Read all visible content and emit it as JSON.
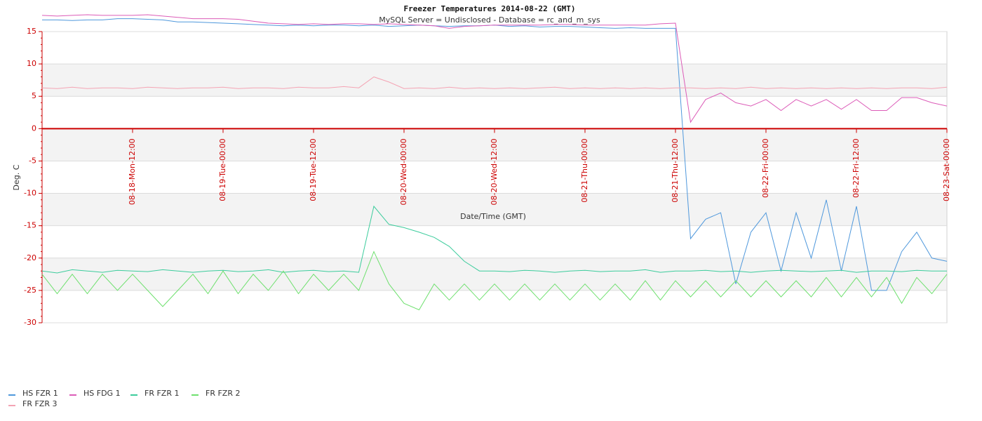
{
  "chart_data": {
    "type": "line",
    "title": "Freezer Temperatures 2014-08-22 (GMT)",
    "subtitle": "MySQL Server = Undisclosed - Database = rc_and_m_sys",
    "x_label": "Date/Time (GMT)",
    "y_label": "Deg. C",
    "x": [
      "08-18 00:00",
      "08-18 02:00",
      "08-18 04:00",
      "08-18 06:00",
      "08-18 08:00",
      "08-18 10:00",
      "08-18 12:00",
      "08-18 14:00",
      "08-18 16:00",
      "08-18 18:00",
      "08-18 20:00",
      "08-18 22:00",
      "08-19 00:00",
      "08-19 02:00",
      "08-19 04:00",
      "08-19 06:00",
      "08-19 08:00",
      "08-19 10:00",
      "08-19 12:00",
      "08-19 14:00",
      "08-19 16:00",
      "08-19 18:00",
      "08-19 20:00",
      "08-19 22:00",
      "08-20 00:00",
      "08-20 02:00",
      "08-20 04:00",
      "08-20 06:00",
      "08-20 08:00",
      "08-20 10:00",
      "08-20 12:00",
      "08-20 14:00",
      "08-20 16:00",
      "08-20 18:00",
      "08-20 20:00",
      "08-20 22:00",
      "08-21 00:00",
      "08-21 02:00",
      "08-21 04:00",
      "08-21 06:00",
      "08-21 08:00",
      "08-21 10:00",
      "08-21 12:00",
      "08-21 14:00",
      "08-21 16:00",
      "08-21 18:00",
      "08-21 20:00",
      "08-21 22:00",
      "08-22 00:00",
      "08-22 02:00",
      "08-22 04:00",
      "08-22 06:00",
      "08-22 08:00",
      "08-22 10:00",
      "08-22 12:00",
      "08-22 14:00",
      "08-22 16:00",
      "08-22 18:00",
      "08-22 20:00",
      "08-22 22:00",
      "08-23 00:00"
    ],
    "series": [
      {
        "name": "HS FZR 1",
        "color": "#4f98dc",
        "values": [
          16.8,
          16.8,
          16.7,
          16.8,
          16.8,
          17,
          17,
          16.9,
          16.8,
          16.5,
          16.5,
          16.4,
          16.3,
          16.2,
          16.1,
          16,
          15.9,
          16,
          15.9,
          16,
          16,
          15.9,
          16,
          15.8,
          15.9,
          16,
          15.9,
          15.8,
          15.9,
          15.9,
          16,
          15.8,
          15.9,
          15.7,
          15.8,
          15.8,
          15.7,
          15.6,
          15.5,
          15.6,
          15.5,
          15.5,
          15.5,
          -17,
          -14,
          -13,
          -24,
          -16,
          -13,
          -22,
          -13,
          -20,
          -11,
          -22,
          -12,
          -25,
          -25,
          -19,
          -16,
          -20,
          -20.5
        ]
      },
      {
        "name": "HS FDG 1",
        "color": "#dc5cb8",
        "values": [
          17.5,
          17.4,
          17.5,
          17.6,
          17.5,
          17.5,
          17.5,
          17.6,
          17.4,
          17.2,
          17,
          17,
          17,
          16.9,
          16.6,
          16.3,
          16.2,
          16.1,
          16.2,
          16.1,
          16.2,
          16.2,
          16.1,
          16.2,
          16.1,
          16,
          15.9,
          15.5,
          15.8,
          15.9,
          16,
          16,
          16,
          16,
          16.1,
          16.1,
          16,
          16,
          16,
          16,
          16,
          16.2,
          16.3,
          1,
          4.5,
          5.5,
          4,
          3.5,
          4.5,
          2.8,
          4.5,
          3.5,
          4.5,
          3,
          4.5,
          2.8,
          2.8,
          4.8,
          4.8,
          4,
          3.5
        ]
      },
      {
        "name": "FR FZR 1",
        "color": "#3ccc9c",
        "values": [
          -22,
          -22.3,
          -21.8,
          -22,
          -22.2,
          -21.9,
          -22,
          -22.1,
          -21.8,
          -22,
          -22.2,
          -22,
          -21.9,
          -22.1,
          -22,
          -21.8,
          -22.2,
          -22,
          -21.9,
          -22.1,
          -22,
          -22.2,
          -12,
          -14.8,
          -15.3,
          -16,
          -16.8,
          -18.2,
          -20.5,
          -22,
          -22,
          -22.1,
          -21.9,
          -22,
          -22.2,
          -22,
          -21.9,
          -22.1,
          -22,
          -22,
          -21.8,
          -22.2,
          -22,
          -22,
          -21.9,
          -22.1,
          -22,
          -22.2,
          -22,
          -21.9,
          -22,
          -22.1,
          -22,
          -21.9,
          -22.2,
          -22,
          -22,
          -22.1,
          -21.9,
          -22,
          -22
        ]
      },
      {
        "name": "FR FZR 2",
        "color": "#6ee06e",
        "values": [
          -22.5,
          -25.5,
          -22.5,
          -25.5,
          -22.5,
          -25,
          -22.5,
          -25,
          -27.5,
          -25,
          -22.5,
          -25.5,
          -22,
          -25.5,
          -22.5,
          -25,
          -22,
          -25.5,
          -22.5,
          -25,
          -22.5,
          -25,
          -19,
          -24,
          -27,
          -28,
          -24,
          -26.5,
          -24,
          -26.5,
          -24,
          -26.5,
          -24,
          -26.5,
          -24,
          -26.5,
          -24,
          -26.5,
          -24,
          -26.5,
          -23.5,
          -26.5,
          -23.5,
          -26,
          -23.5,
          -26,
          -23.5,
          -26,
          -23.5,
          -26,
          -23.5,
          -26,
          -23,
          -26,
          -23,
          -26,
          -23,
          -27,
          -23,
          -25.5,
          -22.5
        ]
      },
      {
        "name": "FR FZR 3",
        "color": "#f4a4b4",
        "values": [
          6.3,
          6.2,
          6.4,
          6.2,
          6.3,
          6.3,
          6.2,
          6.4,
          6.3,
          6.2,
          6.3,
          6.3,
          6.4,
          6.2,
          6.3,
          6.3,
          6.2,
          6.4,
          6.3,
          6.3,
          6.5,
          6.3,
          8,
          7.2,
          6.2,
          6.3,
          6.2,
          6.4,
          6.2,
          6.3,
          6.2,
          6.3,
          6.2,
          6.3,
          6.4,
          6.2,
          6.3,
          6.2,
          6.3,
          6.2,
          6.3,
          6.2,
          6.3,
          6.3,
          6.2,
          6.3,
          6.2,
          6.4,
          6.2,
          6.3,
          6.2,
          6.3,
          6.2,
          6.3,
          6.2,
          6.3,
          6.2,
          6.3,
          6.3,
          6.2,
          6.4
        ]
      }
    ],
    "xlim": [
      "08-18 00:00",
      "08-23 00:00"
    ],
    "xticks": [
      {
        "value": "08-18 12:00",
        "label": "08-18-Mon-12:00"
      },
      {
        "value": "08-19 00:00",
        "label": "08-19-Tue-00:00"
      },
      {
        "value": "08-19 12:00",
        "label": "08-19-Tue-12:00"
      },
      {
        "value": "08-20 00:00",
        "label": "08-20-Wed-00:00"
      },
      {
        "value": "08-20 12:00",
        "label": "08-20-Wed-12:00"
      },
      {
        "value": "08-21 00:00",
        "label": "08-21-Thu-00:00"
      },
      {
        "value": "08-21 12:00",
        "label": "08-21-Thu-12:00"
      },
      {
        "value": "08-22 00:00",
        "label": "08-22-Fri-00:00"
      },
      {
        "value": "08-22 12:00",
        "label": "08-22-Fri-12:00"
      },
      {
        "value": "08-23 00:00",
        "label": "08-23-Sat-00:00"
      }
    ],
    "ylim": [
      -30,
      15
    ],
    "yticks": [
      15,
      10,
      5,
      0,
      -5,
      -10,
      -15,
      -20,
      -25,
      -30
    ],
    "grid": true,
    "legend": "bottom-left"
  }
}
